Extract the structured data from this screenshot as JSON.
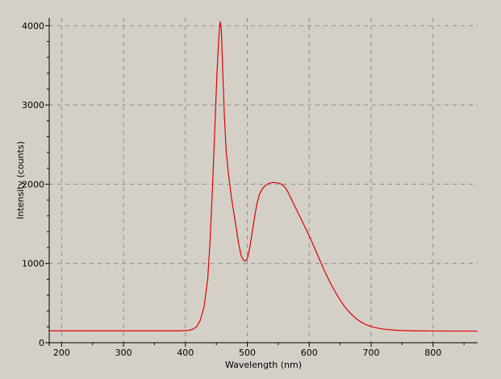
{
  "chart_data": {
    "type": "line",
    "xlabel": "Wavelength (nm)",
    "ylabel": "Intensity (counts)",
    "xlim": [
      180,
      872
    ],
    "ylim": [
      0,
      4100
    ],
    "x_ticks": [
      200,
      300,
      400,
      500,
      600,
      700,
      800
    ],
    "y_ticks": [
      0,
      1000,
      2000,
      3000,
      4000
    ],
    "grid": true,
    "series": [
      {
        "color": "#e00000",
        "points": [
          [
            180,
            150
          ],
          [
            250,
            150
          ],
          [
            300,
            150
          ],
          [
            350,
            150
          ],
          [
            390,
            150
          ],
          [
            405,
            155
          ],
          [
            412,
            170
          ],
          [
            418,
            200
          ],
          [
            424,
            280
          ],
          [
            430,
            450
          ],
          [
            436,
            800
          ],
          [
            440,
            1300
          ],
          [
            444,
            2000
          ],
          [
            448,
            2800
          ],
          [
            451,
            3400
          ],
          [
            454,
            3850
          ],
          [
            456,
            4050
          ],
          [
            458,
            3950
          ],
          [
            460,
            3500
          ],
          [
            463,
            2850
          ],
          [
            466,
            2400
          ],
          [
            470,
            2100
          ],
          [
            474,
            1850
          ],
          [
            478,
            1650
          ],
          [
            482,
            1450
          ],
          [
            486,
            1250
          ],
          [
            490,
            1100
          ],
          [
            494,
            1040
          ],
          [
            497,
            1030
          ],
          [
            500,
            1060
          ],
          [
            504,
            1200
          ],
          [
            508,
            1400
          ],
          [
            512,
            1600
          ],
          [
            516,
            1770
          ],
          [
            520,
            1880
          ],
          [
            525,
            1950
          ],
          [
            530,
            1990
          ],
          [
            535,
            2010
          ],
          [
            540,
            2020
          ],
          [
            545,
            2020
          ],
          [
            550,
            2015
          ],
          [
            555,
            2000
          ],
          [
            560,
            1970
          ],
          [
            565,
            1910
          ],
          [
            570,
            1830
          ],
          [
            575,
            1750
          ],
          [
            580,
            1670
          ],
          [
            585,
            1590
          ],
          [
            590,
            1510
          ],
          [
            595,
            1430
          ],
          [
            600,
            1350
          ],
          [
            605,
            1260
          ],
          [
            610,
            1170
          ],
          [
            615,
            1080
          ],
          [
            620,
            990
          ],
          [
            625,
            900
          ],
          [
            630,
            820
          ],
          [
            635,
            740
          ],
          [
            640,
            670
          ],
          [
            645,
            600
          ],
          [
            650,
            540
          ],
          [
            655,
            480
          ],
          [
            660,
            430
          ],
          [
            665,
            385
          ],
          [
            670,
            345
          ],
          [
            675,
            310
          ],
          [
            680,
            280
          ],
          [
            685,
            255
          ],
          [
            690,
            235
          ],
          [
            695,
            218
          ],
          [
            700,
            205
          ],
          [
            710,
            185
          ],
          [
            720,
            172
          ],
          [
            730,
            164
          ],
          [
            740,
            158
          ],
          [
            750,
            154
          ],
          [
            770,
            150
          ],
          [
            800,
            148
          ],
          [
            830,
            147
          ],
          [
            872,
            147
          ]
        ]
      }
    ]
  }
}
